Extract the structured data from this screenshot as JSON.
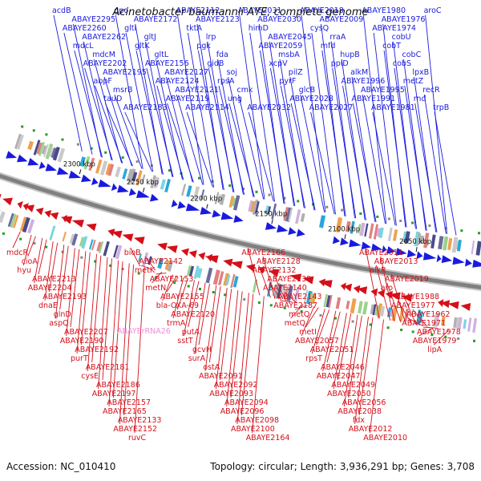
{
  "title": "Acinetobacter baumannii AYE, complete genome",
  "footer": {
    "accession_label": "Accession:",
    "accession": "NC_010410",
    "topology_label": "Topology:",
    "topology": "circular",
    "length_label": "Length:",
    "length": "3,936,291 bp",
    "genes_label": "Genes:",
    "genes": "3,708"
  },
  "scale_ticks": [
    "2300 kbp",
    "2250 kbp",
    "2200 kbp",
    "2150 kbp",
    "2100 kbp",
    "2050 kbp"
  ],
  "colors": {
    "forward_strand": "#1a1adf",
    "reverse_strand": "#d4101a",
    "rna_gene": "#f08cd8",
    "backbone": "#808080"
  },
  "forward_labels": [
    "acdB",
    "ABAYE2295",
    "ABAYE2260",
    "ABAYE2262",
    "mdcL",
    "mdcM",
    "ABAYE2202",
    "ABAYE2195",
    "abpF",
    "msrB",
    "tauD",
    "ABAYE2183",
    "gpo",
    "ABAYE2172",
    "gltI",
    "gltJ",
    "gltK",
    "gltL",
    "ABAYE2156",
    "ABAYE2127",
    "ABAYE2124",
    "ABAYE2121",
    "ABAYE2119",
    "ABAYE2114",
    "ABAYE2112",
    "ABAYE2123",
    "tktA",
    "lrp",
    "pgk",
    "fda",
    "gidB",
    "soj",
    "rpsA",
    "cmk",
    "ung",
    "ABAYE2032",
    "ABAYE2031",
    "ABAYE2030",
    "himD",
    "ABAYE2045",
    "ABAYE2059",
    "msbA",
    "xcpV",
    "pilZ",
    "pyrF",
    "glcB",
    "ABAYE2028",
    "ABAYE2027",
    "ABAYE2018",
    "ABAYE2009",
    "cysQ",
    "rraA",
    "mfd",
    "hupB",
    "ppiD",
    "alkM",
    "ABAYE1996",
    "ABAYE1995",
    "ABAYE1991",
    "ABAYE1981",
    "ABAYE1980",
    "ABAYE1976",
    "ABAYE1974",
    "cobU",
    "cobT",
    "cobC",
    "cobS",
    "lpxB",
    "metZ",
    "recR",
    "rnd",
    "trpB",
    "aroC"
  ],
  "reverse_labels": [
    "mdcR",
    "cioA",
    "hyu",
    "ABAYE2213",
    "ABAYE2204",
    "ABAYE2193",
    "dnaE",
    "glnD",
    "aspQ",
    "ABAYE2207",
    "ABAYE2190",
    "ABAYE2192",
    "purT",
    "ABAYE2181",
    "cysE",
    "ABAYE2186",
    "ABAYE2197",
    "ABAYE2157",
    "ABAYE2165",
    "ABAYE2133",
    "ABAYE2152",
    "ruvC",
    "bioB",
    "ABAYE2142",
    "metK",
    "ABAYE2153",
    "metN",
    "ABAYE2155",
    "bla-OXA-69",
    "ABAYE2120",
    "trmA",
    "putA",
    "sstT",
    "gcvH",
    "surA",
    "ostA",
    "ABAYE2091",
    "ABAYE2092",
    "ABAYE2093",
    "ABAYE2094",
    "ABAYE2096",
    "ABAYE2098",
    "ABAYE2100",
    "ABAYE2164",
    "ABAYE2166",
    "ABAYE2128",
    "ABAYE2132",
    "ABAYE2138",
    "ABAYE2140",
    "ABAYE2143",
    "ABAYE2187",
    "metQ",
    "metQ",
    "metI",
    "ABAYE2057",
    "ABAYE2051",
    "rpsT",
    "ABAYE2046",
    "ABAYE2047",
    "ABAYE2049",
    "ABAYE2050",
    "ABAYE2056",
    "ABAYE2038",
    "fdx",
    "ABAYE2012",
    "ABAYE2010",
    "ABAYE2011",
    "ABAYE2013",
    "alkR",
    "ABAYE2019",
    "aro",
    "ABAYE1988",
    "ABAYE1977",
    "ABAYE1962",
    "ABAYE1971",
    "ABAYE1978",
    "ABAYE1979",
    "lipA"
  ],
  "rna_labels": [
    "ABAYErRNA26"
  ]
}
